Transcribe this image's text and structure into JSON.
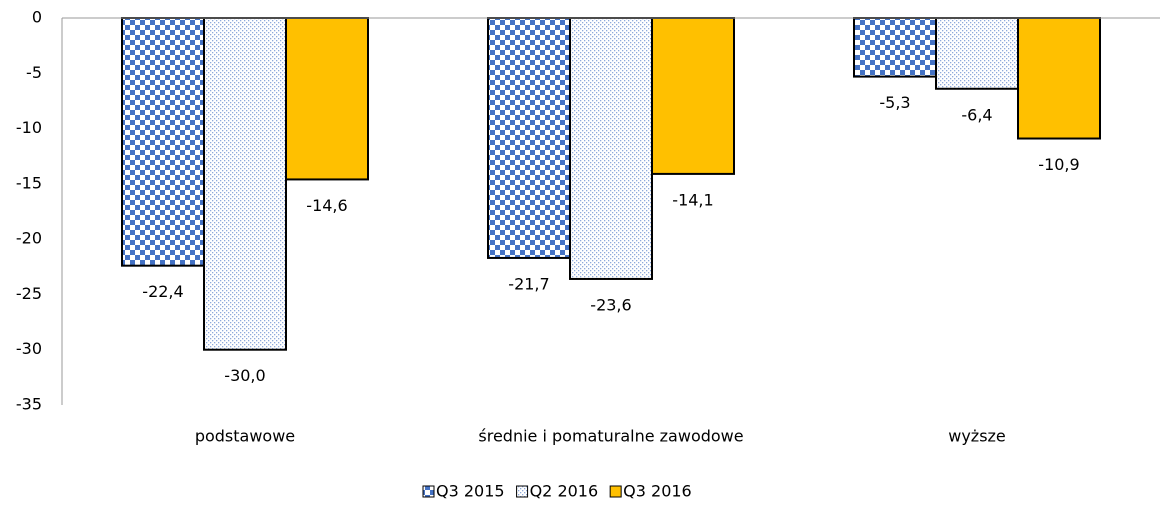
{
  "chart_data": {
    "type": "bar",
    "categories": [
      "podstawowe",
      "średnie i pomaturalne zawodowe",
      "wyższe"
    ],
    "series": [
      {
        "name": "Q3 2015",
        "color": "#4472c4",
        "pattern": "checker",
        "values": [
          -22.4,
          -21.7,
          -5.3
        ],
        "value_labels": [
          "-22,4",
          "-21,7",
          "-5,3"
        ]
      },
      {
        "name": "Q2 2016",
        "color": "#8ea9db",
        "pattern": "dots",
        "values": [
          -30.0,
          -23.6,
          -6.4
        ],
        "value_labels": [
          "-30,0",
          "-23,6",
          "-6,4"
        ]
      },
      {
        "name": "Q3 2016",
        "color": "#ffc000",
        "pattern": "solid",
        "values": [
          -14.6,
          -14.1,
          -10.9
        ],
        "value_labels": [
          "-14,6",
          "-14,1",
          "-10,9"
        ]
      }
    ],
    "ylim": [
      -35,
      0
    ],
    "yticks": [
      0,
      -5,
      -10,
      -15,
      -20,
      -25,
      -30,
      -35
    ],
    "legend": "bottom"
  }
}
